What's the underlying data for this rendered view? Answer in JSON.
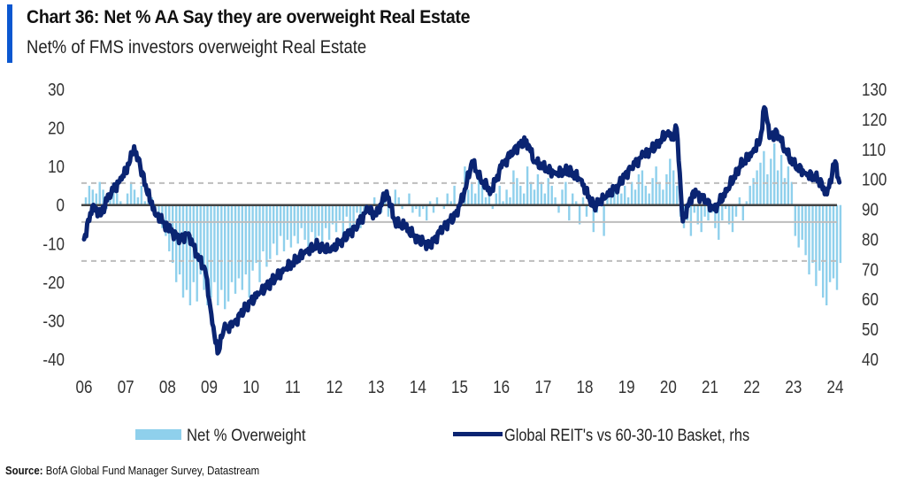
{
  "header": {
    "title": "Chart 36: Net % AA Say they are overweight Real Estate",
    "subtitle": "Net% of FMS investors overweight Real Estate"
  },
  "source": {
    "label": "Source:",
    "text": "BofA Global Fund Manager Survey, Datastream"
  },
  "colors": {
    "accent": "#0b57d0",
    "bars": "#8fd0ec",
    "line": "#0a2472",
    "zero_line": "#444444",
    "ref_line": "#bdbdbd",
    "dashed_line": "#bdbdbd"
  },
  "chart_data": {
    "type": "bar+line",
    "title": "Chart 36: Net % AA Say they are overweight Real Estate",
    "subtitle": "Net% of FMS investors overweight Real Estate",
    "xlabel": "",
    "ylabel_left": "Net %",
    "ylabel_right": "Global REIT's vs 60-30-10 Basket",
    "x_tick_labels": [
      "06",
      "07",
      "08",
      "09",
      "10",
      "11",
      "12",
      "13",
      "14",
      "15",
      "16",
      "17",
      "18",
      "19",
      "20",
      "21",
      "22",
      "23",
      "24"
    ],
    "x_range": [
      2006.0,
      2024.2
    ],
    "y_left": {
      "range": [
        -40,
        30
      ],
      "ticks": [
        30,
        20,
        10,
        0,
        -10,
        -20,
        -30,
        -40
      ]
    },
    "y_right": {
      "range": [
        40,
        130
      ],
      "ticks": [
        130,
        120,
        110,
        100,
        90,
        80,
        70,
        60,
        50,
        40
      ]
    },
    "reference_lines": [
      {
        "axis": "left",
        "value": 0,
        "style": "solid",
        "role": "zero"
      },
      {
        "axis": "left",
        "value": -4.4,
        "style": "solid",
        "role": "average"
      },
      {
        "axis": "left",
        "value": 5.7,
        "style": "dashed",
        "role": "+1 stdev"
      },
      {
        "axis": "left",
        "value": -14.5,
        "style": "dashed",
        "role": "-1 stdev"
      }
    ],
    "grid": false,
    "legend_position": "bottom",
    "legend": [
      {
        "name": "Net % Overweight",
        "kind": "bar"
      },
      {
        "name": "Global REIT's vs 60-30-10 Basket, rhs",
        "kind": "line"
      }
    ],
    "series": [
      {
        "name": "Net % Overweight",
        "axis": "left",
        "type": "bar",
        "start": "2006-01",
        "frequency": "monthly",
        "values": [
          2,
          5,
          4,
          3,
          6,
          4,
          -1,
          2,
          5,
          3,
          1,
          0,
          3,
          6,
          4,
          2,
          5,
          1,
          4,
          2,
          -2,
          -4,
          -6,
          -8,
          -12,
          -15,
          -20,
          -18,
          -24,
          -22,
          -26,
          -20,
          -25,
          -18,
          -22,
          -26,
          -24,
          -20,
          -26,
          -22,
          -27,
          -25,
          -20,
          -23,
          -19,
          -22,
          -18,
          -24,
          -17,
          -15,
          -20,
          -12,
          -16,
          -14,
          -10,
          -13,
          -8,
          -12,
          -9,
          -11,
          -8,
          -10,
          -6,
          -9,
          -12,
          -7,
          -10,
          -8,
          -11,
          -6,
          -9,
          -5,
          -7,
          -4,
          -8,
          -3,
          -6,
          -5,
          -2,
          -6,
          -4,
          -1,
          -3,
          2,
          0,
          -2,
          1,
          -3,
          -1,
          4,
          2,
          -1,
          0,
          3,
          -2,
          -1,
          -3,
          -1,
          -4,
          1,
          -2,
          2,
          0,
          -1,
          3,
          1,
          5,
          -1,
          2,
          10,
          4,
          6,
          3,
          8,
          5,
          2,
          4,
          -1,
          3,
          5,
          1,
          4,
          2,
          9,
          7,
          5,
          3,
          10,
          6,
          4,
          8,
          6,
          3,
          7,
          5,
          2,
          -2,
          4,
          6,
          -4,
          3,
          1,
          -5,
          2,
          -3,
          0,
          -7,
          -2,
          1,
          -8,
          3,
          2,
          4,
          6,
          3,
          5,
          2,
          6,
          4,
          8,
          9,
          5,
          3,
          7,
          10,
          6,
          4,
          8,
          12,
          9,
          5,
          -3,
          -6,
          -4,
          -8,
          -2,
          -5,
          -7,
          -3,
          -4,
          -2,
          -6,
          -9,
          -4,
          -1,
          -5,
          -7,
          -3,
          2,
          -4,
          1,
          5,
          7,
          9,
          11,
          14,
          8,
          12,
          16,
          9,
          13,
          7,
          10,
          6,
          -8,
          -11,
          -9,
          -13,
          -18,
          -15,
          -21,
          -17,
          -24,
          -26,
          -20,
          -19,
          -22,
          -15
        ]
      },
      {
        "name": "Global REIT's vs 60-30-10 Basket, rhs",
        "axis": "right",
        "type": "line",
        "x": [
          2006.0,
          2006.2,
          2006.4,
          2006.6,
          2006.9,
          2007.1,
          2007.2,
          2007.35,
          2007.6,
          2007.75,
          2008.0,
          2008.3,
          2008.5,
          2008.7,
          2008.9,
          2009.05,
          2009.2,
          2009.35,
          2009.6,
          2009.9,
          2010.2,
          2010.5,
          2010.8,
          2011.0,
          2011.3,
          2011.6,
          2011.9,
          2012.2,
          2012.5,
          2012.8,
          2013.0,
          2013.25,
          2013.45,
          2013.7,
          2014.0,
          2014.3,
          2014.6,
          2014.9,
          2015.1,
          2015.3,
          2015.5,
          2015.75,
          2016.0,
          2016.3,
          2016.6,
          2016.8,
          2017.0,
          2017.3,
          2017.6,
          2017.9,
          2018.2,
          2018.5,
          2018.8,
          2019.1,
          2019.4,
          2019.7,
          2020.0,
          2020.1,
          2020.2,
          2020.35,
          2020.6,
          2020.9,
          2021.1,
          2021.4,
          2021.7,
          2022.0,
          2022.2,
          2022.3,
          2022.45,
          2022.6,
          2022.8,
          2023.0,
          2023.3,
          2023.6,
          2023.8,
          2024.0,
          2024.1
        ],
        "values": [
          80,
          91,
          88,
          95,
          100,
          106,
          111,
          104,
          92,
          88,
          84,
          80,
          82,
          75,
          70,
          55,
          42,
          50,
          52,
          58,
          62,
          66,
          70,
          72,
          76,
          78,
          76,
          80,
          84,
          90,
          88,
          96,
          86,
          84,
          80,
          78,
          84,
          88,
          95,
          106,
          100,
          96,
          104,
          110,
          113,
          106,
          104,
          102,
          103,
          100,
          91,
          94,
          98,
          104,
          108,
          111,
          116,
          114,
          117,
          86,
          96,
          93,
          90,
          96,
          104,
          109,
          113,
          124,
          114,
          116,
          110,
          105,
          102,
          100,
          95,
          106,
          99
        ]
      }
    ]
  }
}
